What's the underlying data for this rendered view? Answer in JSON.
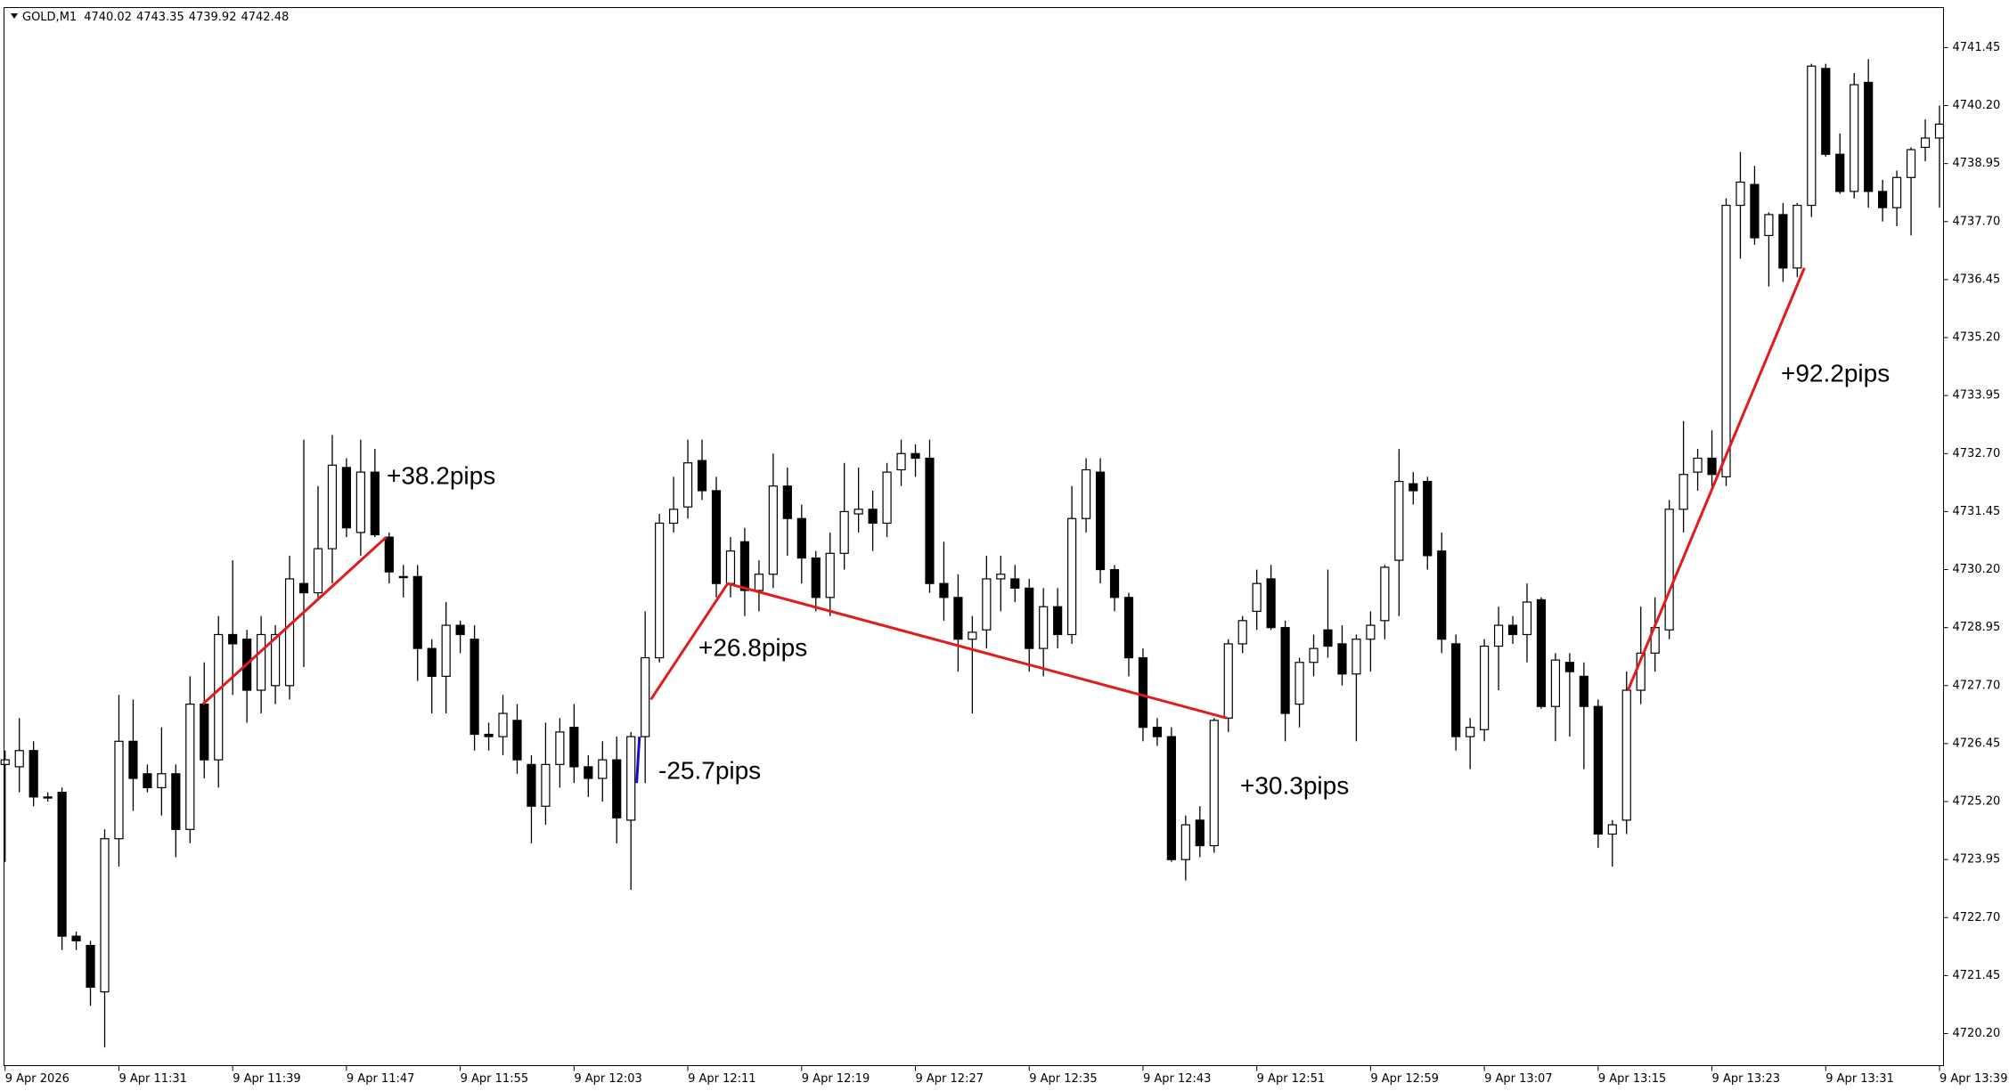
{
  "chart_data": {
    "type": "candlestick",
    "symbol": "GOLD,M1",
    "quote": [
      4740.02,
      4743.35,
      4739.92,
      4742.48
    ],
    "up_color": "#ffffff",
    "down_color": "#000000",
    "categories": [
      "9 Apr 2026",
      null,
      null,
      null,
      null,
      null,
      null,
      null,
      "9 Apr 11:31",
      null,
      null,
      null,
      null,
      null,
      null,
      null,
      "9 Apr 11:39",
      null,
      null,
      null,
      null,
      null,
      null,
      null,
      "9 Apr 11:47",
      null,
      null,
      null,
      null,
      null,
      null,
      null,
      "9 Apr 11:55",
      null,
      null,
      null,
      null,
      null,
      null,
      null,
      "9 Apr 12:03",
      null,
      null,
      null,
      null,
      null,
      null,
      null,
      "9 Apr 12:11",
      null,
      null,
      null,
      null,
      null,
      null,
      null,
      "9 Apr 12:19",
      null,
      null,
      null,
      null,
      null,
      null,
      null,
      "9 Apr 12:27",
      null,
      null,
      null,
      null,
      null,
      null,
      null,
      "9 Apr 12:35",
      null,
      null,
      null,
      null,
      null,
      null,
      null,
      "9 Apr 12:43",
      null,
      null,
      null,
      null,
      null,
      null,
      null,
      "9 Apr 12:51",
      null,
      null,
      null,
      null,
      null,
      null,
      null,
      "9 Apr 12:59",
      null,
      null,
      null,
      null,
      null,
      null,
      null,
      "9 Apr 13:07",
      null,
      null,
      null,
      null,
      null,
      null,
      null,
      "9 Apr 13:15",
      null,
      null,
      null,
      null,
      null,
      null,
      null,
      "9 Apr 13:23",
      null,
      null,
      null,
      null,
      null,
      null,
      null,
      "9 Apr 13:31",
      null,
      null,
      null,
      null,
      null,
      null,
      null,
      "9 Apr 13:39"
    ],
    "open": [
      4726.0,
      4725.95,
      4726.3,
      4725.3,
      4725.4,
      4722.3,
      4722.1,
      4721.1,
      4724.4,
      4726.5,
      4725.8,
      4725.5,
      4725.8,
      4724.6,
      4727.3,
      4726.1,
      4728.8,
      4728.7,
      4727.6,
      4727.7,
      4727.7,
      4729.9,
      4729.7,
      4730.65,
      4732.4,
      4731.0,
      4732.3,
      4730.9,
      4730.05,
      4730.05,
      4728.5,
      4727.9,
      4729.0,
      4728.7,
      4726.65,
      4726.6,
      4726.95,
      4726.0,
      4725.1,
      4726.0,
      4726.8,
      4725.95,
      4725.7,
      4726.1,
      4724.8,
      4726.6,
      4728.3,
      4731.2,
      4731.55,
      4732.55,
      4731.9,
      4729.9,
      4730.8,
      4729.75,
      4730.1,
      4732.0,
      4731.3,
      4730.45,
      4729.6,
      4730.55,
      4731.4,
      4731.5,
      4731.2,
      4732.35,
      4732.7,
      4732.6,
      4729.9,
      4729.6,
      4728.7,
      4728.9,
      4730.0,
      4730.0,
      4729.8,
      4728.5,
      4729.4,
      4728.8,
      4731.3,
      4732.3,
      4730.2,
      4729.6,
      4728.3,
      4726.8,
      4726.6,
      4723.95,
      4724.8,
      4724.25,
      4727.0,
      4728.6,
      4729.3,
      4730.0,
      4728.95,
      4727.3,
      4728.2,
      4728.9,
      4728.6,
      4727.95,
      4728.7,
      4729.1,
      4730.4,
      4732.05,
      4732.1,
      4730.6,
      4728.6,
      4726.6,
      4726.75,
      4728.55,
      4729.0,
      4728.8,
      4729.55,
      4727.25,
      4728.2,
      4727.9,
      4727.25,
      4724.5,
      4724.8,
      4727.6,
      4728.4,
      4728.9,
      4731.5,
      4732.3,
      4732.6,
      4732.2,
      4738.05,
      4738.5,
      4737.4,
      4737.85,
      4736.7,
      4738.05,
      4741.0,
      4739.15,
      4738.35,
      4740.7,
      4738.35,
      4738.0,
      4738.65,
      4739.3,
      4739.5
    ],
    "high": [
      4726.3,
      4727.0,
      4726.5,
      4725.4,
      4725.5,
      4722.4,
      4722.2,
      4724.6,
      4727.5,
      4727.4,
      4726.0,
      4726.8,
      4726.0,
      4727.9,
      4728.2,
      4729.2,
      4730.4,
      4728.9,
      4729.2,
      4729.0,
      4730.5,
      4733.0,
      4732.0,
      4733.1,
      4732.6,
      4733.0,
      4732.8,
      4731.0,
      4730.3,
      4730.3,
      4728.7,
      4729.5,
      4729.1,
      4729.0,
      4726.9,
      4727.5,
      4727.3,
      4726.2,
      4726.9,
      4727.0,
      4727.3,
      4726.2,
      4726.5,
      4726.6,
      4726.7,
      4729.3,
      4731.4,
      4732.2,
      4733.0,
      4733.0,
      4732.2,
      4730.9,
      4731.1,
      4730.4,
      4732.7,
      4732.4,
      4731.6,
      4730.6,
      4731.0,
      4732.5,
      4732.4,
      4731.9,
      4732.5,
      4733.0,
      4732.9,
      4733.0,
      4730.8,
      4730.1,
      4729.2,
      4730.5,
      4730.5,
      4730.3,
      4730.0,
      4729.8,
      4729.8,
      4732.0,
      4732.6,
      4732.6,
      4730.3,
      4729.7,
      4728.5,
      4727.0,
      4726.8,
      4724.9,
      4725.1,
      4727.0,
      4728.7,
      4729.2,
      4730.2,
      4730.3,
      4729.1,
      4728.3,
      4728.8,
      4730.2,
      4729.0,
      4728.8,
      4729.3,
      4730.3,
      4732.8,
      4732.3,
      4732.2,
      4731.0,
      4728.8,
      4727.0,
      4728.7,
      4729.4,
      4729.2,
      4729.9,
      4729.6,
      4728.4,
      4728.4,
      4728.2,
      4727.4,
      4724.8,
      4728.0,
      4729.4,
      4729.6,
      4731.7,
      4733.4,
      4732.8,
      4733.2,
      4738.2,
      4739.2,
      4738.9,
      4737.9,
      4738.1,
      4738.1,
      4741.1,
      4741.1,
      4739.6,
      4740.9,
      4741.2,
      4738.6,
      4738.8,
      4739.3,
      4739.9,
      4740.2
    ],
    "low": [
      4723.9,
      4725.4,
      4725.1,
      4725.2,
      4722.0,
      4722.0,
      4720.8,
      4719.9,
      4723.8,
      4725.0,
      4725.4,
      4724.9,
      4724.0,
      4724.3,
      4725.7,
      4725.5,
      4727.5,
      4726.9,
      4727.1,
      4727.3,
      4727.4,
      4728.1,
      4729.6,
      4729.9,
      4730.9,
      4730.5,
      4730.9,
      4729.9,
      4729.6,
      4727.8,
      4727.1,
      4727.1,
      4728.4,
      4726.3,
      4726.3,
      4726.2,
      4725.8,
      4724.3,
      4724.7,
      4725.5,
      4725.6,
      4725.3,
      4725.2,
      4724.3,
      4723.3,
      4725.6,
      4728.2,
      4731.0,
      4731.3,
      4731.7,
      4729.6,
      4729.6,
      4729.2,
      4729.3,
      4729.8,
      4730.5,
      4729.9,
      4729.3,
      4729.2,
      4730.2,
      4731.0,
      4730.6,
      4730.9,
      4732.0,
      4732.2,
      4729.7,
      4729.1,
      4728.0,
      4727.1,
      4728.5,
      4729.3,
      4729.5,
      4728.0,
      4727.9,
      4728.5,
      4728.6,
      4731.0,
      4729.9,
      4729.3,
      4727.9,
      4726.5,
      4726.4,
      4723.9,
      4723.5,
      4724.0,
      4724.1,
      4726.7,
      4728.4,
      4728.9,
      4728.9,
      4726.5,
      4726.8,
      4727.9,
      4728.3,
      4727.7,
      4726.5,
      4728.0,
      4728.7,
      4729.2,
      4731.6,
      4730.2,
      4728.4,
      4726.3,
      4725.9,
      4726.5,
      4727.6,
      4728.6,
      4728.2,
      4727.2,
      4726.5,
      4726.6,
      4725.9,
      4724.2,
      4723.8,
      4724.5,
      4727.3,
      4728.0,
      4728.7,
      4731.0,
      4731.9,
      4732.0,
      4732.0,
      4736.9,
      4737.2,
      4736.3,
      4736.4,
      4736.5,
      4737.8,
      4739.1,
      4738.3,
      4738.2,
      4738.0,
      4737.7,
      4737.6,
      4737.4,
      4739.0,
      4738.0
    ],
    "close": [
      4726.1,
      4726.3,
      4725.3,
      4725.3,
      4722.3,
      4722.2,
      4721.2,
      4724.4,
      4726.5,
      4725.7,
      4725.5,
      4725.8,
      4724.6,
      4727.3,
      4726.1,
      4728.8,
      4728.6,
      4727.6,
      4728.8,
      4728.8,
      4730.0,
      4729.7,
      4730.65,
      4732.45,
      4731.1,
      4732.3,
      4730.95,
      4730.15,
      4730.05,
      4728.5,
      4727.9,
      4729.0,
      4728.8,
      4726.65,
      4726.6,
      4727.1,
      4726.1,
      4725.1,
      4726.0,
      4726.7,
      4725.95,
      4725.7,
      4726.1,
      4724.85,
      4726.6,
      4728.3,
      4731.2,
      4731.5,
      4732.5,
      4731.9,
      4729.9,
      4730.6,
      4729.75,
      4730.1,
      4732.0,
      4731.3,
      4730.45,
      4729.6,
      4730.55,
      4731.45,
      4731.5,
      4731.2,
      4732.3,
      4732.7,
      4732.6,
      4729.9,
      4729.6,
      4728.7,
      4728.85,
      4730.0,
      4730.1,
      4729.8,
      4728.5,
      4729.4,
      4728.8,
      4731.3,
      4732.35,
      4730.2,
      4729.6,
      4728.3,
      4726.8,
      4726.6,
      4723.95,
      4724.7,
      4724.25,
      4726.95,
      4728.6,
      4729.1,
      4729.9,
      4728.95,
      4727.1,
      4728.2,
      4728.5,
      4728.55,
      4727.95,
      4728.7,
      4729.0,
      4730.25,
      4732.1,
      4731.9,
      4730.5,
      4728.7,
      4726.6,
      4726.8,
      4728.55,
      4729.0,
      4728.8,
      4729.5,
      4727.25,
      4728.25,
      4728.0,
      4727.25,
      4724.5,
      4724.7,
      4727.6,
      4728.4,
      4728.95,
      4731.5,
      4732.25,
      4732.6,
      4732.25,
      4738.05,
      4738.55,
      4737.35,
      4737.85,
      4736.7,
      4738.05,
      4741.05,
      4739.15,
      4738.35,
      4740.65,
      4738.35,
      4738.0,
      4738.65,
      4739.25,
      4739.5,
      4739.8
    ],
    "ylim": [
      4719.51,
      4742.31
    ],
    "yticks": [
      {
        "value": 4720.2,
        "label": "4720.20"
      },
      4721.45,
      {
        "value": 4722.7,
        "label": "4722.70"
      },
      4723.95,
      {
        "value": 4725.2,
        "label": "4725.20"
      },
      4726.45,
      {
        "value": 4727.7,
        "label": "4727.70"
      },
      4728.95,
      {
        "value": 4730.2,
        "label": "4730.20"
      },
      4731.45,
      {
        "value": 4732.7,
        "label": "4732.70"
      },
      4733.95,
      {
        "value": 4735.2,
        "label": "4735.20"
      },
      4736.45,
      {
        "value": 4737.7,
        "label": "4737.70"
      },
      4738.95,
      {
        "value": 4740.2,
        "label": "4740.20"
      },
      4741.45
    ],
    "annotations": [
      {
        "text": "+38.2pips",
        "color": "#e31a1c",
        "x": [
          13.9,
          26.8
        ],
        "y": [
          4727.3,
          4730.9
        ]
      },
      {
        "text": "-25.7pips",
        "color": "#1010cc",
        "x": [
          44.4,
          44.6
        ],
        "y": [
          4725.6,
          4726.6
        ]
      },
      {
        "text": "+26.8pips",
        "color": "#e31a1c",
        "x": [
          45.4,
          50.8
        ],
        "y": [
          4727.4,
          4729.9
        ]
      },
      {
        "text": "+30.3pips",
        "color": "#e31a1c",
        "x": [
          50.8,
          85.9
        ],
        "y": [
          4729.9,
          4727.0
        ]
      },
      {
        "text": "+92.2pips",
        "color": "#e31a1c",
        "x": [
          114.1,
          126.5
        ],
        "y": [
          4727.6,
          4736.7
        ]
      }
    ]
  }
}
